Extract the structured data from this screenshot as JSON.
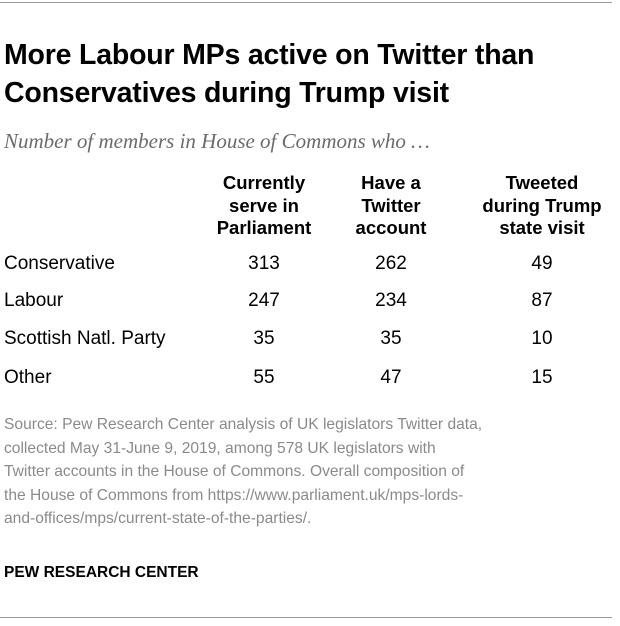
{
  "header": {
    "title_lines": [
      "More Labour MPs active on Twitter than",
      "Conservatives during Trump visit"
    ],
    "subtitle": "Number of members in House of Commons who …"
  },
  "chart_data": {
    "type": "table",
    "title": "More Labour MPs active on Twitter than Conservatives during Trump visit",
    "subtitle": "Number of members in House of Commons who …",
    "columns": [
      {
        "lines": [
          "Currently",
          "serve in",
          "Parliament"
        ]
      },
      {
        "lines": [
          "Have a",
          "Twitter",
          "account"
        ]
      },
      {
        "lines": [
          "Tweeted",
          "during Trump",
          "state visit"
        ]
      }
    ],
    "rows": [
      {
        "label": "Conservative",
        "values": [
          "313",
          "262",
          "49"
        ]
      },
      {
        "label": "Labour",
        "values": [
          "247",
          "234",
          "87"
        ]
      },
      {
        "label": "Scottish Natl. Party",
        "values": [
          "35",
          "35",
          "10"
        ]
      },
      {
        "label": "Other",
        "values": [
          "55",
          "47",
          "15"
        ]
      }
    ]
  },
  "footer": {
    "source_lines": [
      "Source: Pew Research Center analysis of UK legislators Twitter data,",
      "collected May 31-June 9, 2019, among 578 UK legislators with",
      "Twitter accounts in the House of Commons. Overall composition of",
      "the House of Commons from https://www.parliament.uk/mps-lords-",
      "and-offices/mps/current-state-of-the-parties/."
    ],
    "brand": "PEW RESEARCH CENTER"
  }
}
